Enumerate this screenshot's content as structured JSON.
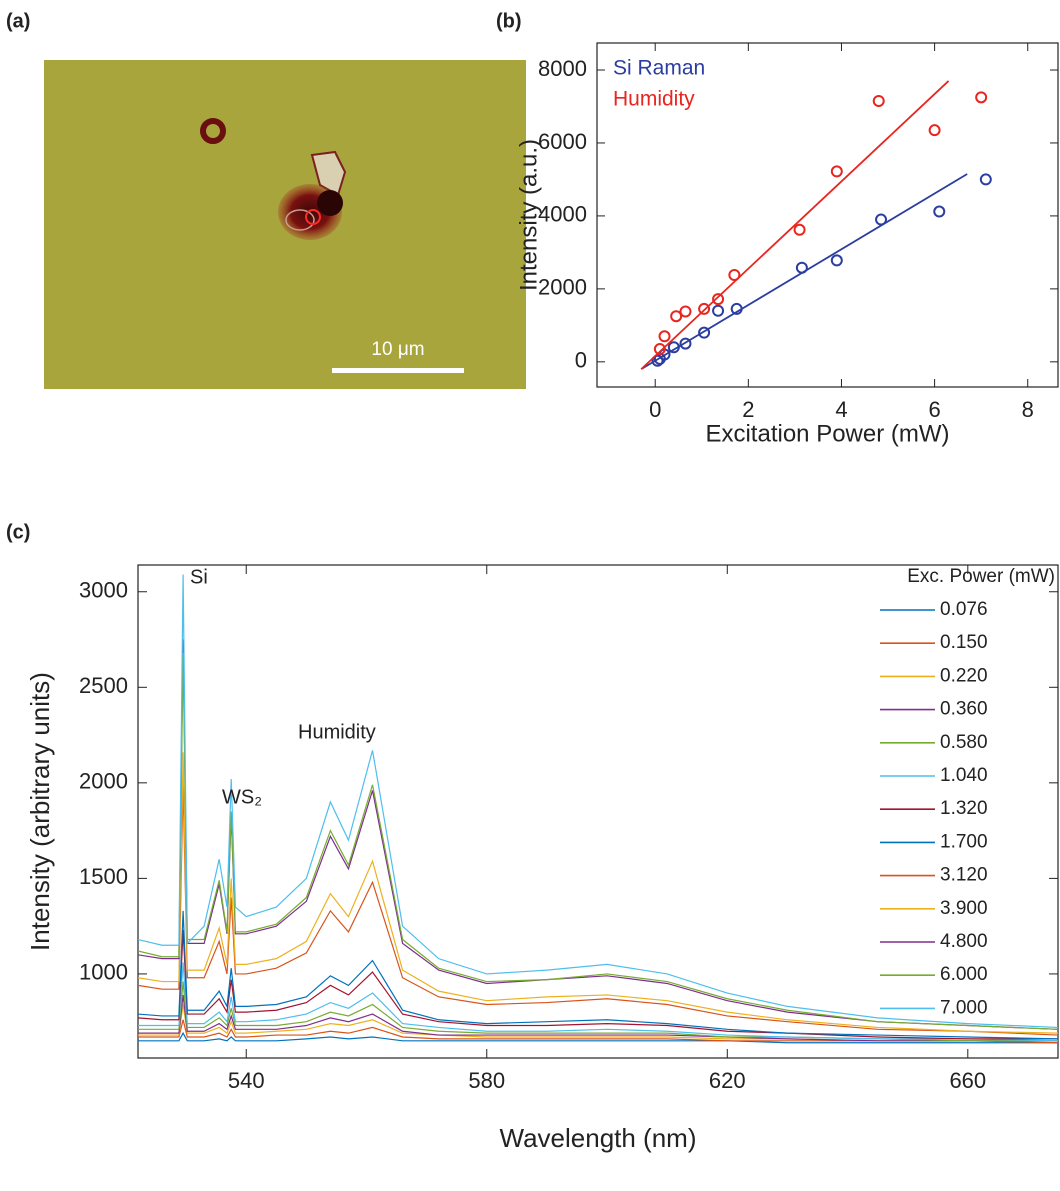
{
  "panel_labels": [
    "(a)",
    "(b)",
    "(c)"
  ],
  "image": {
    "scale_bar_label": "10 μm"
  },
  "chart_data": [
    {
      "type": "scatter",
      "xlabel": "Excitation Power (mW)",
      "ylabel": "Intensity (a.u.)",
      "xlim": [
        -1.25,
        8.65
      ],
      "ylim": [
        -690,
        8740
      ],
      "xticks": [
        0,
        2,
        4,
        6,
        8
      ],
      "yticks": [
        0,
        2000,
        4000,
        6000,
        8000
      ],
      "series": [
        {
          "name": "Si Raman",
          "color": "#2b3ea0",
          "x": [
            0.05,
            0.1,
            0.2,
            0.4,
            0.65,
            1.05,
            1.35,
            1.75,
            3.15,
            3.9,
            4.85,
            6.1,
            7.1
          ],
          "values": [
            30,
            80,
            200,
            400,
            500,
            800,
            1400,
            1450,
            2580,
            2780,
            3900,
            4120,
            5000
          ],
          "fit_x": [
            -0.3,
            6.7
          ],
          "fit_y": [
            -200,
            5150
          ]
        },
        {
          "name": "Humidity",
          "color": "#e8251f",
          "x": [
            0.1,
            0.2,
            0.45,
            0.65,
            1.05,
            1.35,
            1.7,
            3.1,
            3.9,
            4.8,
            6.0,
            7.0
          ],
          "values": [
            350,
            700,
            1250,
            1380,
            1450,
            1720,
            2380,
            3620,
            5220,
            7150,
            6350,
            7250
          ],
          "fit_x": [
            -0.3,
            6.3
          ],
          "fit_y": [
            -200,
            7700
          ]
        }
      ]
    },
    {
      "type": "line",
      "xlabel": "Wavelength (nm)",
      "ylabel": "Intensity (arbitrary units)",
      "legend_title": "Exc. Power (mW)",
      "annotations": [
        "Si",
        "WS₂",
        "Humidity"
      ],
      "xlim": [
        522,
        675
      ],
      "ylim": [
        560,
        3140
      ],
      "xticks": [
        540,
        580,
        620,
        660
      ],
      "yticks": [
        1000,
        1500,
        2000,
        2500,
        3000
      ],
      "x": [
        522,
        526,
        528.8,
        529.5,
        530.2,
        533,
        535.5,
        536.8,
        537.5,
        538.2,
        540,
        545,
        550,
        554,
        557,
        561,
        566,
        572,
        580,
        590,
        600,
        610,
        620,
        630,
        645,
        660,
        675
      ],
      "series": [
        {
          "name": "0.076",
          "color": "#0072bd",
          "values": [
            650,
            650,
            650,
            690,
            650,
            650,
            660,
            650,
            670,
            650,
            650,
            650,
            660,
            670,
            660,
            670,
            650,
            650,
            650,
            650,
            650,
            650,
            650,
            640,
            640,
            640,
            640
          ]
        },
        {
          "name": "0.150",
          "color": "#d95319",
          "values": [
            670,
            670,
            670,
            760,
            670,
            670,
            690,
            670,
            710,
            670,
            670,
            680,
            680,
            700,
            690,
            720,
            670,
            660,
            660,
            660,
            660,
            660,
            650,
            650,
            650,
            650,
            640
          ]
        },
        {
          "name": "0.220",
          "color": "#edb120",
          "values": [
            680,
            680,
            680,
            840,
            690,
            690,
            720,
            690,
            750,
            690,
            690,
            700,
            710,
            740,
            730,
            760,
            690,
            680,
            670,
            670,
            670,
            670,
            660,
            660,
            650,
            650,
            650
          ]
        },
        {
          "name": "0.360",
          "color": "#7e2f8e",
          "values": [
            690,
            690,
            690,
            890,
            700,
            700,
            740,
            710,
            780,
            710,
            710,
            710,
            730,
            770,
            750,
            790,
            700,
            680,
            680,
            680,
            680,
            680,
            670,
            660,
            650,
            650,
            650
          ]
        },
        {
          "name": "0.580",
          "color": "#77ac30",
          "values": [
            710,
            710,
            710,
            960,
            720,
            720,
            770,
            730,
            820,
            730,
            730,
            730,
            750,
            800,
            780,
            840,
            720,
            700,
            690,
            690,
            690,
            690,
            670,
            670,
            660,
            650,
            650
          ]
        },
        {
          "name": "1.040",
          "color": "#4dbeee",
          "values": [
            730,
            730,
            730,
            1060,
            740,
            740,
            800,
            750,
            880,
            750,
            750,
            760,
            790,
            850,
            820,
            900,
            740,
            720,
            700,
            700,
            710,
            700,
            680,
            670,
            660,
            660,
            650
          ]
        },
        {
          "name": "1.320",
          "color": "#a2142f",
          "values": [
            770,
            760,
            760,
            1230,
            790,
            790,
            870,
            800,
            970,
            800,
            800,
            810,
            850,
            940,
            890,
            1010,
            790,
            750,
            730,
            730,
            740,
            730,
            700,
            690,
            670,
            660,
            660
          ]
        },
        {
          "name": "1.700",
          "color": "#0072bd",
          "values": [
            790,
            780,
            780,
            1330,
            810,
            810,
            910,
            830,
            1030,
            830,
            830,
            840,
            880,
            990,
            940,
            1070,
            810,
            760,
            740,
            750,
            760,
            740,
            710,
            690,
            680,
            670,
            660
          ]
        },
        {
          "name": "3.120",
          "color": "#d95319",
          "values": [
            940,
            920,
            920,
            1990,
            980,
            980,
            1170,
            1000,
            1400,
            1000,
            1000,
            1030,
            1110,
            1330,
            1220,
            1480,
            980,
            880,
            840,
            850,
            870,
            840,
            780,
            750,
            710,
            700,
            680
          ]
        },
        {
          "name": "3.900",
          "color": "#edb120",
          "values": [
            980,
            960,
            960,
            2160,
            1020,
            1020,
            1240,
            1050,
            1500,
            1050,
            1050,
            1080,
            1170,
            1420,
            1300,
            1590,
            1020,
            910,
            860,
            880,
            890,
            860,
            800,
            760,
            720,
            700,
            690
          ]
        },
        {
          "name": "4.800",
          "color": "#7e2f8e",
          "values": [
            1100,
            1080,
            1080,
            2750,
            1160,
            1160,
            1470,
            1210,
            1830,
            1210,
            1210,
            1250,
            1380,
            1720,
            1550,
            1960,
            1160,
            1020,
            950,
            970,
            990,
            950,
            860,
            800,
            750,
            730,
            710
          ]
        },
        {
          "name": "6.000",
          "color": "#77ac30",
          "values": [
            1120,
            1090,
            1090,
            2680,
            1180,
            1180,
            1490,
            1220,
            1850,
            1220,
            1220,
            1260,
            1400,
            1750,
            1570,
            1990,
            1180,
            1030,
            960,
            970,
            1000,
            960,
            870,
            810,
            750,
            730,
            710
          ]
        },
        {
          "name": "7.000",
          "color": "#4dbeee",
          "values": [
            1180,
            1150,
            1150,
            3090,
            1160,
            1250,
            1600,
            1350,
            2020,
            1350,
            1300,
            1350,
            1500,
            1900,
            1700,
            2170,
            1250,
            1080,
            1000,
            1020,
            1050,
            1000,
            900,
            830,
            770,
            740,
            720
          ]
        }
      ]
    }
  ]
}
